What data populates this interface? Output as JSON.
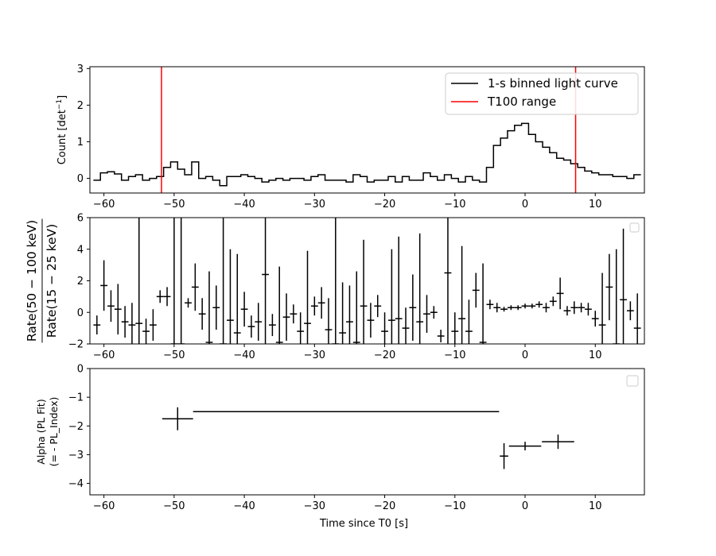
{
  "chart_data": [
    {
      "type": "line",
      "ylabel": "Count [det",
      "ylabel_sup": "−1",
      "ylabel_close": "]",
      "xlim": [
        -62,
        17
      ],
      "ylim": [
        -0.4,
        3.05
      ],
      "yticks": [
        0,
        1,
        2,
        3
      ],
      "xticks": [
        -60,
        -50,
        -40,
        -30,
        -20,
        -10,
        0,
        10
      ],
      "legend_position": "upper right",
      "series": [
        {
          "name": "1-s binned light curve",
          "color": "#000000",
          "style": "step",
          "x": [
            -61,
            -60,
            -59,
            -58,
            -57,
            -56,
            -55,
            -54,
            -53,
            -52,
            -51,
            -50,
            -49,
            -48,
            -47,
            -46,
            -45,
            -44,
            -43,
            -42,
            -41,
            -40,
            -39,
            -38,
            -37,
            -36,
            -35,
            -34,
            -33,
            -32,
            -31,
            -30,
            -29,
            -28,
            -27,
            -26,
            -25,
            -24,
            -23,
            -22,
            -21,
            -20,
            -19,
            -18,
            -17,
            -16,
            -15,
            -14,
            -13,
            -12,
            -11,
            -10,
            -9,
            -8,
            -7,
            -6,
            -5,
            -4,
            -3,
            -2,
            -1,
            0,
            1,
            2,
            3,
            4,
            5,
            6,
            7,
            8,
            9,
            10,
            11,
            12,
            13,
            14,
            15,
            16
          ],
          "y": [
            -0.05,
            0.15,
            0.18,
            0.12,
            -0.05,
            0.05,
            0.1,
            -0.05,
            0.0,
            0.05,
            0.3,
            0.45,
            0.25,
            0.1,
            0.45,
            0.0,
            0.05,
            -0.05,
            -0.2,
            0.05,
            0.05,
            0.1,
            0.05,
            0.0,
            -0.1,
            -0.05,
            0.0,
            -0.05,
            0.0,
            0.0,
            -0.05,
            0.05,
            0.1,
            -0.05,
            -0.05,
            -0.05,
            -0.1,
            0.1,
            0.05,
            -0.1,
            -0.05,
            -0.05,
            0.05,
            -0.1,
            0.05,
            -0.05,
            -0.05,
            0.15,
            0.05,
            -0.05,
            0.1,
            0.0,
            -0.1,
            0.05,
            -0.05,
            -0.1,
            0.3,
            0.9,
            1.1,
            1.3,
            1.45,
            1.5,
            1.2,
            1.0,
            0.85,
            0.7,
            0.55,
            0.5,
            0.4,
            0.3,
            0.2,
            0.15,
            0.1,
            0.1,
            0.05,
            0.05,
            0.0,
            0.1
          ]
        },
        {
          "name": "T100 range",
          "color": "#ff0000",
          "style": "vline",
          "x": [
            -51.8,
            7.2
          ]
        }
      ]
    },
    {
      "type": "scatter",
      "ylabel_numerator": "Rate(50 − 100 keV)",
      "ylabel_denominator": "Rate(15 − 25 keV)",
      "xlim": [
        -62,
        17
      ],
      "ylim": [
        -2,
        6
      ],
      "yticks": [
        -2,
        0,
        2,
        4,
        6
      ],
      "xticks": [
        -60,
        -50,
        -40,
        -30,
        -20,
        -10,
        0,
        10
      ],
      "series": [
        {
          "color": "#000000",
          "x": [
            -61,
            -60,
            -59,
            -58,
            -57,
            -56,
            -55,
            -54,
            -53,
            -52,
            -51,
            -50,
            -49,
            -48,
            -47,
            -46,
            -45,
            -44,
            -43,
            -42,
            -41,
            -40,
            -39,
            -38,
            -37,
            -36,
            -35,
            -34,
            -33,
            -32,
            -31,
            -30,
            -29,
            -28,
            -27,
            -26,
            -25,
            -24,
            -23,
            -22,
            -21,
            -20,
            -19,
            -18,
            -17,
            -16,
            -15,
            -14,
            -13,
            -12,
            -11,
            -10,
            -9,
            -8,
            -7,
            -6,
            -5,
            -4,
            -3,
            -2,
            -1,
            0,
            1,
            2,
            3,
            4,
            5,
            6,
            7,
            8,
            9,
            10,
            11,
            12,
            13,
            14,
            15,
            16
          ],
          "y": [
            -0.8,
            1.7,
            0.4,
            0.2,
            -0.6,
            -0.8,
            -0.7,
            -1.2,
            -0.8,
            1.0,
            1.0,
            -2.0,
            -2.0,
            0.6,
            1.6,
            -0.1,
            -1.9,
            0.3,
            -2.0,
            -0.5,
            -1.3,
            0.2,
            -0.9,
            -0.6,
            2.4,
            -0.8,
            -1.9,
            -0.3,
            -0.1,
            -1.2,
            -0.7,
            0.4,
            0.6,
            -1.1,
            -2.0,
            -1.3,
            -0.6,
            -1.9,
            0.4,
            -0.5,
            0.4,
            -1.2,
            -0.5,
            -0.4,
            -1.0,
            0.3,
            -0.6,
            -0.1,
            0.0,
            -1.5,
            2.5,
            -1.2,
            -0.4,
            -1.2,
            1.4,
            -1.9,
            0.5,
            0.3,
            0.2,
            0.3,
            0.3,
            0.4,
            0.4,
            0.5,
            0.3,
            0.7,
            1.2,
            0.1,
            0.3,
            0.3,
            0.2,
            -0.4,
            -0.8,
            1.6,
            -2.0,
            0.8,
            0.1,
            -1.0
          ],
          "yerr": [
            0.6,
            1.6,
            1.0,
            1.6,
            1.0,
            1.4,
            10,
            0.8,
            1.0,
            0.4,
            0.6,
            10,
            10,
            0.3,
            1.5,
            1.0,
            4.5,
            1.4,
            10,
            4.5,
            5,
            1.1,
            0.7,
            1.2,
            8,
            0.7,
            4.8,
            1.5,
            0.6,
            1.2,
            4.6,
            0.6,
            1.0,
            2.0,
            8,
            3.2,
            2.3,
            4.5,
            4.2,
            1.1,
            0.7,
            1.2,
            4.5,
            5.2,
            1.3,
            2.1,
            5.6,
            1.2,
            0.4,
            0.4,
            5,
            1.2,
            4.6,
            2.0,
            1.1,
            5,
            0.3,
            0.3,
            0.15,
            0.15,
            0.15,
            0.15,
            0.15,
            0.2,
            0.3,
            0.3,
            1.0,
            0.3,
            0.4,
            0.3,
            0.4,
            0.5,
            3.3,
            2.1,
            6,
            4.5,
            0.6,
            2.2
          ]
        }
      ]
    },
    {
      "type": "scatter",
      "ylabel_line1": "Alpha (PL Fit)",
      "ylabel_line2": "(= - PL_Index)",
      "xlabel": "Time since T0 [s]",
      "xlim": [
        -62,
        17
      ],
      "ylim": [
        -4.4,
        0
      ],
      "yticks": [
        0,
        -1,
        -2,
        -3,
        -4
      ],
      "xticks": [
        -60,
        -50,
        -40,
        -30,
        -20,
        -10,
        0,
        10
      ],
      "series": [
        {
          "color": "#000000",
          "points": [
            {
              "x": -49.5,
              "xerr_lo": 2.2,
              "xerr_hi": 2.2,
              "y": -1.75,
              "yerr": 0.4
            },
            {
              "x": -25.5,
              "xerr_lo": 21.8,
              "xerr_hi": 21.8,
              "y": -1.5,
              "yerr": 0
            },
            {
              "x": -3.0,
              "xerr_lo": 0.6,
              "xerr_hi": 0.6,
              "y": -3.05,
              "yerr": 0.45
            },
            {
              "x": 0.0,
              "xerr_lo": 2.3,
              "xerr_hi": 2.3,
              "y": -2.7,
              "yerr": 0.15
            },
            {
              "x": 4.7,
              "xerr_lo": 2.3,
              "xerr_hi": 2.3,
              "y": -2.55,
              "yerr": 0.25
            }
          ]
        }
      ]
    }
  ]
}
